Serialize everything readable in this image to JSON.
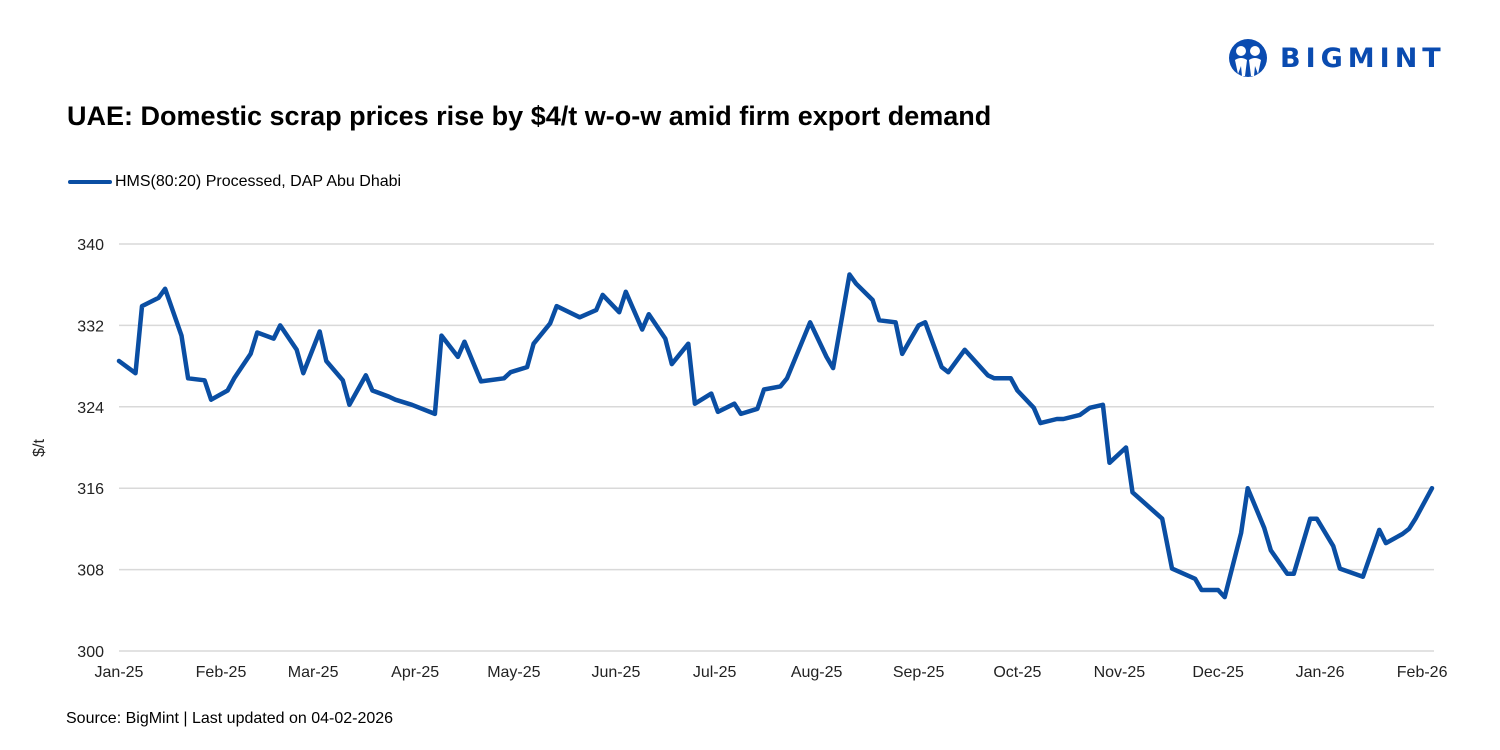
{
  "brand": {
    "name": "BIGMINT",
    "color": "#0a4bb0"
  },
  "source": "Source: BigMint | Last updated on 04-02-2026",
  "chart_data": {
    "type": "line",
    "title": "UAE: Domestic scrap prices rise by $4/t w-o-w amid firm export demand",
    "xlabel": "",
    "ylabel": "$/t",
    "ylim": [
      300,
      340
    ],
    "yticks": [
      300,
      308,
      316,
      324,
      332,
      340
    ],
    "xlim": [
      "2025-01-01",
      "2026-02-04"
    ],
    "xticks": [
      {
        "date": "2025-01-01",
        "label": "Jan-25"
      },
      {
        "date": "2025-02-01",
        "label": "Feb-25"
      },
      {
        "date": "2025-03-01",
        "label": "Mar-25"
      },
      {
        "date": "2025-04-01",
        "label": "Apr-25"
      },
      {
        "date": "2025-05-01",
        "label": "May-25"
      },
      {
        "date": "2025-06-01",
        "label": "Jun-25"
      },
      {
        "date": "2025-07-01",
        "label": "Jul-25"
      },
      {
        "date": "2025-08-01",
        "label": "Aug-25"
      },
      {
        "date": "2025-09-01",
        "label": "Sep-25"
      },
      {
        "date": "2025-10-01",
        "label": "Oct-25"
      },
      {
        "date": "2025-11-01",
        "label": "Nov-25"
      },
      {
        "date": "2025-12-01",
        "label": "Dec-25"
      },
      {
        "date": "2026-01-01",
        "label": "Jan-26"
      },
      {
        "date": "2026-02-01",
        "label": "Feb-26"
      }
    ],
    "grid": true,
    "legend_position": "top-left",
    "series": [
      {
        "name": "HMS(80:20) Processed, DAP Abu Dhabi",
        "color": "#0a4ea3",
        "x": [
          "2025-01-01",
          "2025-01-06",
          "2025-01-08",
          "2025-01-13",
          "2025-01-15",
          "2025-01-20",
          "2025-01-22",
          "2025-01-27",
          "2025-01-29",
          "2025-02-03",
          "2025-02-05",
          "2025-02-10",
          "2025-02-12",
          "2025-02-17",
          "2025-02-19",
          "2025-02-24",
          "2025-02-26",
          "2025-03-03",
          "2025-03-05",
          "2025-03-10",
          "2025-03-12",
          "2025-03-17",
          "2025-03-19",
          "2025-03-24",
          "2025-03-26",
          "2025-03-31",
          "2025-04-07",
          "2025-04-09",
          "2025-04-14",
          "2025-04-16",
          "2025-04-21",
          "2025-04-28",
          "2025-04-30",
          "2025-05-05",
          "2025-05-07",
          "2025-05-12",
          "2025-05-14",
          "2025-05-21",
          "2025-05-26",
          "2025-05-28",
          "2025-06-02",
          "2025-06-04",
          "2025-06-09",
          "2025-06-11",
          "2025-06-16",
          "2025-06-18",
          "2025-06-23",
          "2025-06-25",
          "2025-06-30",
          "2025-07-02",
          "2025-07-07",
          "2025-07-09",
          "2025-07-14",
          "2025-07-16",
          "2025-07-21",
          "2025-07-23",
          "2025-07-30",
          "2025-08-04",
          "2025-08-06",
          "2025-08-11",
          "2025-08-13",
          "2025-08-18",
          "2025-08-20",
          "2025-08-25",
          "2025-08-27",
          "2025-09-01",
          "2025-09-03",
          "2025-09-08",
          "2025-09-10",
          "2025-09-15",
          "2025-09-22",
          "2025-09-24",
          "2025-09-29",
          "2025-10-01",
          "2025-10-06",
          "2025-10-08",
          "2025-10-13",
          "2025-10-15",
          "2025-10-20",
          "2025-10-23",
          "2025-10-27",
          "2025-10-29",
          "2025-11-03",
          "2025-11-05",
          "2025-11-14",
          "2025-11-17",
          "2025-11-24",
          "2025-11-26",
          "2025-12-01",
          "2025-12-03",
          "2025-12-08",
          "2025-12-10",
          "2025-12-15",
          "2025-12-17",
          "2025-12-22",
          "2025-12-24",
          "2025-12-29",
          "2025-12-31",
          "2026-01-05",
          "2026-01-07",
          "2026-01-14",
          "2026-01-19",
          "2026-01-21",
          "2026-01-26",
          "2026-01-28",
          "2026-01-30",
          "2026-02-04"
        ],
        "values": [
          328.5,
          327.3,
          333.9,
          334.7,
          335.6,
          331.0,
          326.8,
          326.6,
          324.7,
          325.6,
          326.8,
          329.2,
          331.3,
          330.7,
          332.0,
          329.6,
          327.3,
          331.4,
          328.5,
          326.6,
          324.2,
          327.1,
          325.6,
          325.0,
          324.7,
          324.2,
          323.3,
          331.0,
          328.9,
          330.4,
          326.5,
          326.8,
          327.4,
          327.9,
          330.2,
          332.2,
          333.9,
          332.8,
          333.5,
          335.0,
          333.3,
          335.3,
          331.6,
          333.1,
          330.7,
          328.2,
          330.2,
          324.3,
          325.3,
          323.5,
          324.3,
          323.3,
          323.8,
          325.7,
          326.0,
          326.8,
          332.3,
          328.9,
          327.8,
          337.0,
          336.1,
          334.5,
          332.5,
          332.3,
          329.2,
          332.0,
          332.3,
          327.9,
          327.4,
          329.6,
          327.1,
          326.8,
          326.8,
          325.6,
          323.9,
          322.4,
          322.8,
          322.8,
          323.2,
          323.9,
          324.2,
          318.5,
          320.0,
          315.6,
          313.0,
          308.1,
          307.1,
          306.0,
          306.0,
          305.3,
          311.6,
          316.0,
          312.1,
          309.9,
          307.6,
          307.6,
          313.0,
          313.0,
          310.3,
          308.1,
          307.3,
          311.9,
          310.6,
          311.5,
          312.0,
          313.0,
          316.0
        ]
      }
    ]
  }
}
